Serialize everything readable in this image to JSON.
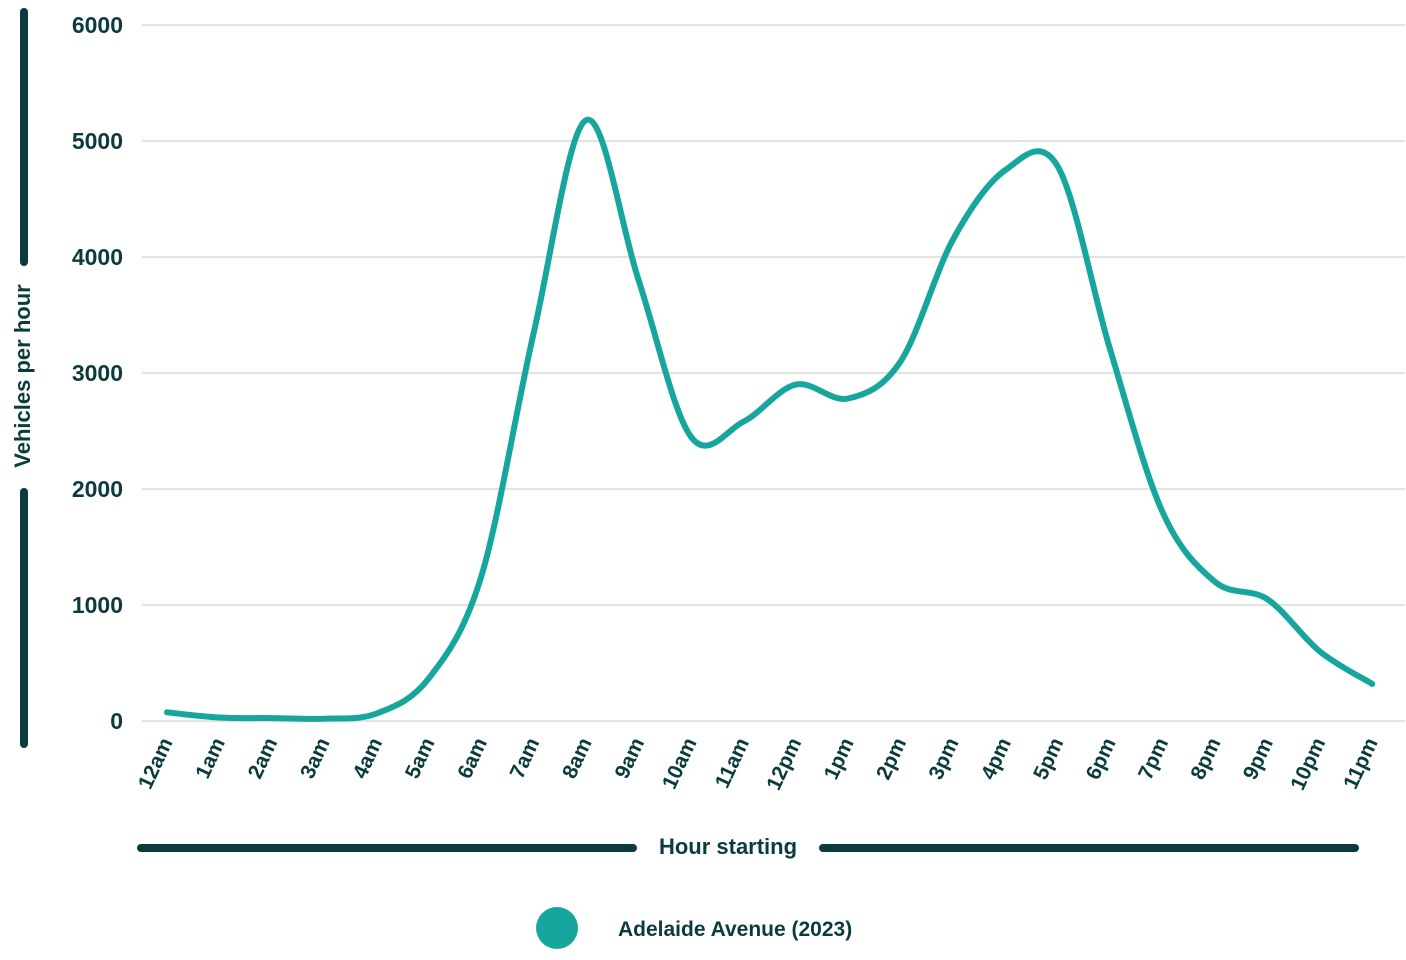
{
  "chart_data": {
    "type": "line",
    "title": "",
    "xlabel": "Hour starting",
    "ylabel": "Vehicles per hour",
    "ylim": [
      0,
      6000
    ],
    "yticks": [
      "0",
      "1000",
      "2000",
      "3000",
      "4000",
      "5000",
      "6000"
    ],
    "categories": [
      "12am",
      "1am",
      "2am",
      "3am",
      "4am",
      "5am",
      "6am",
      "7am",
      "8am",
      "9am",
      "10am",
      "11am",
      "12pm",
      "1pm",
      "2pm",
      "3pm",
      "4pm",
      "5pm",
      "6pm",
      "7pm",
      "8pm",
      "9pm",
      "10pm",
      "11pm"
    ],
    "grid": true,
    "legend_position": "bottom",
    "colors": {
      "series": "#17a69e",
      "text": "#0c3b3e",
      "grid": "#d9d9d9"
    },
    "series": [
      {
        "name": "Adelaide Avenue (2023)",
        "values": [
          75,
          30,
          25,
          20,
          65,
          370,
          1250,
          3350,
          5180,
          3800,
          2450,
          2580,
          2900,
          2780,
          3100,
          4150,
          4750,
          4780,
          3200,
          1800,
          1200,
          1050,
          600,
          320
        ]
      }
    ]
  }
}
